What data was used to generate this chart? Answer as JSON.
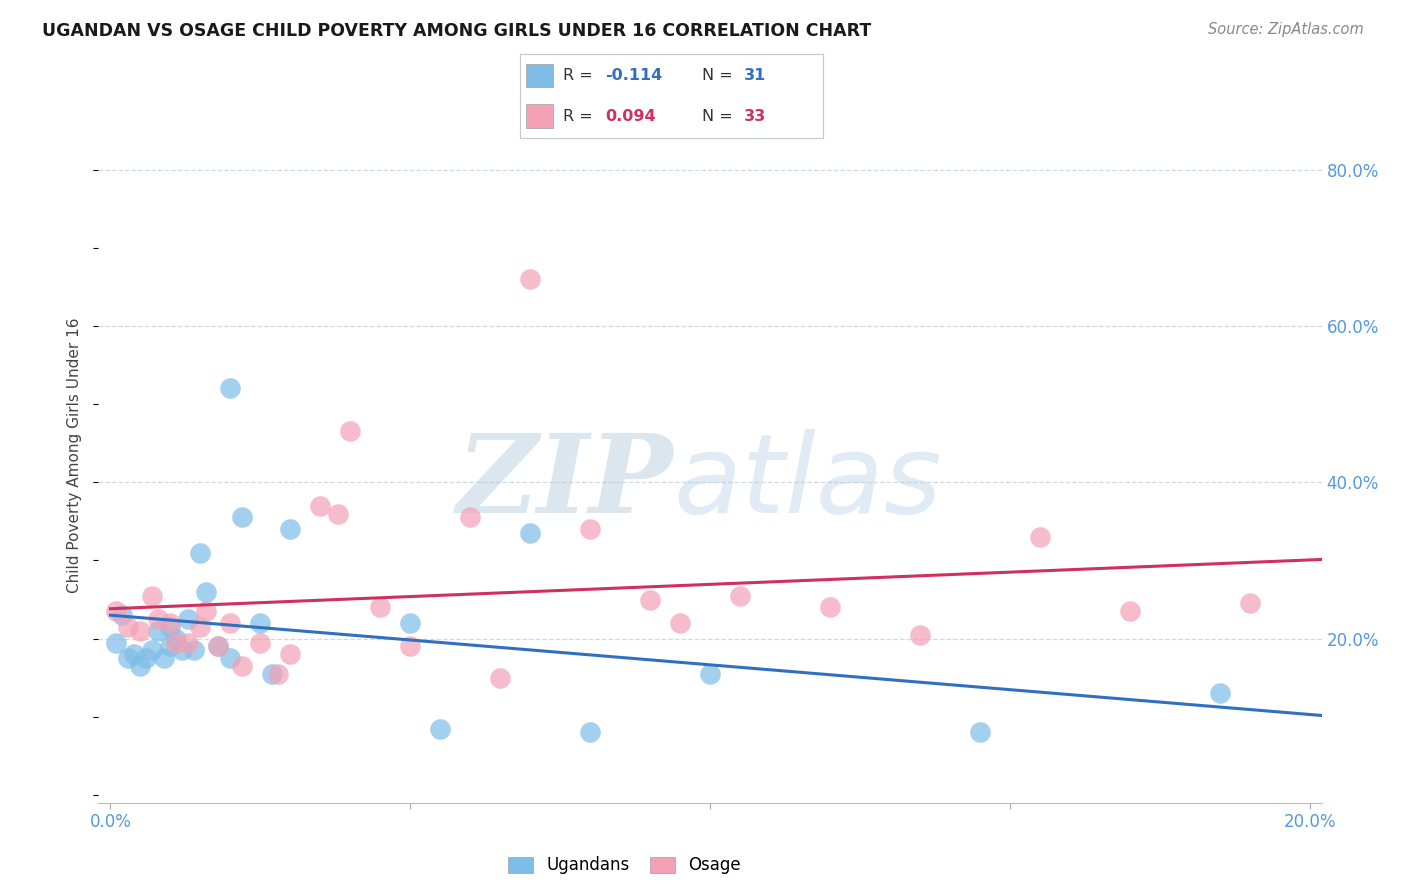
{
  "title": "UGANDAN VS OSAGE CHILD POVERTY AMONG GIRLS UNDER 16 CORRELATION CHART",
  "source": "Source: ZipAtlas.com",
  "ylabel": "Child Poverty Among Girls Under 16",
  "xlim": [
    -0.002,
    0.202
  ],
  "ylim": [
    -0.01,
    0.88
  ],
  "xticks": [
    0.0,
    0.05,
    0.1,
    0.15,
    0.2
  ],
  "xtick_labels": [
    "0.0%",
    "",
    "",
    "",
    "20.0%"
  ],
  "ytick_right_vals": [
    0.2,
    0.4,
    0.6,
    0.8
  ],
  "ytick_right_labels": [
    "20.0%",
    "40.0%",
    "60.0%",
    "80.0%"
  ],
  "ugandan_R": -0.114,
  "ugandan_N": 31,
  "osage_R": 0.094,
  "osage_N": 33,
  "ugandan_color": "#7dbde8",
  "osage_color": "#f4a0b5",
  "ugandan_line_color": "#3070c0",
  "osage_line_color": "#d03060",
  "ugandan_x": [
    0.001,
    0.002,
    0.003,
    0.004,
    0.005,
    0.006,
    0.007,
    0.008,
    0.009,
    0.01,
    0.01,
    0.011,
    0.012,
    0.013,
    0.014,
    0.015,
    0.016,
    0.018,
    0.02,
    0.02,
    0.022,
    0.025,
    0.027,
    0.03,
    0.05,
    0.055,
    0.07,
    0.08,
    0.1,
    0.145,
    0.185
  ],
  "ugandan_y": [
    0.195,
    0.23,
    0.175,
    0.18,
    0.165,
    0.175,
    0.185,
    0.21,
    0.175,
    0.215,
    0.19,
    0.2,
    0.185,
    0.225,
    0.185,
    0.31,
    0.26,
    0.19,
    0.175,
    0.52,
    0.355,
    0.22,
    0.155,
    0.34,
    0.22,
    0.085,
    0.335,
    0.08,
    0.155,
    0.08,
    0.13
  ],
  "osage_x": [
    0.001,
    0.003,
    0.005,
    0.007,
    0.008,
    0.01,
    0.011,
    0.013,
    0.015,
    0.016,
    0.018,
    0.02,
    0.022,
    0.025,
    0.028,
    0.03,
    0.035,
    0.038,
    0.04,
    0.045,
    0.05,
    0.06,
    0.065,
    0.07,
    0.08,
    0.09,
    0.095,
    0.105,
    0.12,
    0.135,
    0.155,
    0.17,
    0.19
  ],
  "osage_y": [
    0.235,
    0.215,
    0.21,
    0.255,
    0.225,
    0.22,
    0.195,
    0.195,
    0.215,
    0.235,
    0.19,
    0.22,
    0.165,
    0.195,
    0.155,
    0.18,
    0.37,
    0.36,
    0.465,
    0.24,
    0.19,
    0.355,
    0.15,
    0.66,
    0.34,
    0.25,
    0.22,
    0.255,
    0.24,
    0.205,
    0.33,
    0.235,
    0.245
  ],
  "watermark_zip": "ZIP",
  "watermark_atlas": "atlas",
  "background_color": "#ffffff",
  "grid_color": "#d0d8e0",
  "legend_border_color": "#c0c8d0"
}
